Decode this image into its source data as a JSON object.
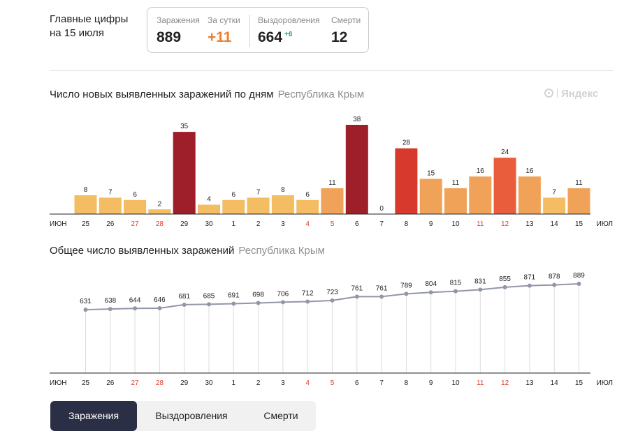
{
  "header": {
    "title_line1": "Главные цифры",
    "title_line2": "на 15 июля"
  },
  "stats": {
    "infections_label": "Заражения",
    "infections_value": "889",
    "daily_label": "За сутки",
    "daily_value": "+11",
    "recoveries_label": "Выздоровления",
    "recoveries_value": "664",
    "recoveries_delta": "+6",
    "deaths_label": "Смерти",
    "deaths_value": "12"
  },
  "watermark": "Яндекс",
  "tabs": [
    {
      "label": "Заражения",
      "active": true
    },
    {
      "label": "Выздоровления",
      "active": false
    },
    {
      "label": "Смерти",
      "active": false
    }
  ],
  "colors": {
    "weekend_red": "#e0402c",
    "line": "#9297a8",
    "tab_active_bg": "#2b2f45"
  },
  "chart_data": [
    {
      "type": "bar",
      "title": "Число новых выявленных заражений по дням",
      "subtitle": "Республика Крым",
      "month_start_label": "ИЮН",
      "month_end_label": "ИЮЛ",
      "categories": [
        "25",
        "26",
        "27",
        "28",
        "29",
        "30",
        "1",
        "2",
        "3",
        "4",
        "5",
        "6",
        "7",
        "8",
        "9",
        "10",
        "11",
        "12",
        "13",
        "14",
        "15"
      ],
      "weekend": [
        false,
        false,
        true,
        true,
        false,
        false,
        false,
        false,
        false,
        true,
        true,
        false,
        false,
        false,
        false,
        false,
        true,
        true,
        false,
        false,
        false
      ],
      "values": [
        8,
        7,
        6,
        2,
        35,
        4,
        6,
        7,
        8,
        6,
        11,
        38,
        0,
        28,
        15,
        11,
        16,
        24,
        16,
        7,
        11
      ],
      "ylim": [
        0,
        38
      ],
      "color_scale": [
        {
          "max": 8,
          "color": "#f4bc63"
        },
        {
          "max": 16,
          "color": "#f0a258"
        },
        {
          "max": 20,
          "color": "#ef8e4a"
        },
        {
          "max": 25,
          "color": "#e95d3d"
        },
        {
          "max": 30,
          "color": "#d8392d"
        },
        {
          "max": 100,
          "color": "#9e1e2a"
        }
      ]
    },
    {
      "type": "line",
      "title": "Общее число выявленных заражений",
      "subtitle": "Республика Крым",
      "month_start_label": "ИЮН",
      "month_end_label": "ИЮЛ",
      "categories": [
        "25",
        "26",
        "27",
        "28",
        "29",
        "30",
        "1",
        "2",
        "3",
        "4",
        "5",
        "6",
        "7",
        "8",
        "9",
        "10",
        "11",
        "12",
        "13",
        "14",
        "15"
      ],
      "weekend": [
        false,
        false,
        true,
        true,
        false,
        false,
        false,
        false,
        false,
        true,
        true,
        false,
        false,
        false,
        false,
        false,
        true,
        true,
        false,
        false,
        false
      ],
      "values": [
        631,
        638,
        644,
        646,
        681,
        685,
        691,
        698,
        706,
        712,
        723,
        761,
        761,
        789,
        804,
        815,
        831,
        855,
        871,
        878,
        889
      ],
      "ylim": [
        0,
        889
      ]
    }
  ]
}
